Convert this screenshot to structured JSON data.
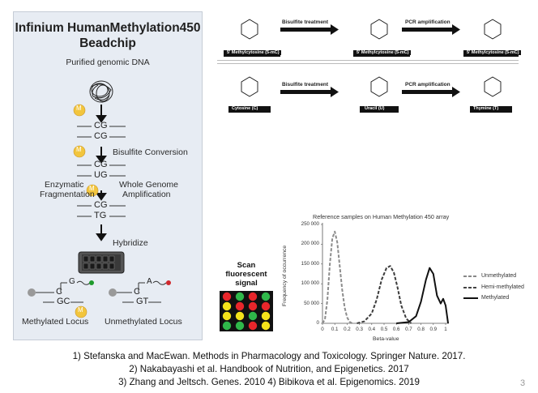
{
  "beadchip": {
    "title_line1": "Infinium HumanMethylation450",
    "title_line2": "Beadchip",
    "step_purified": "Purified genomic DNA",
    "step_bisulfite": "Bisulfite Conversion",
    "step_enzymatic_1": "Enzymatic",
    "step_enzymatic_2": "Fragmentation",
    "step_wga_1": "Whole Genome",
    "step_wga_2": "Amplification",
    "step_hybridize": "Hybridize",
    "methyl_mark": "M",
    "seq_cg": "CG",
    "seq_ug": "UG",
    "seq_tg": "TG",
    "probe_c": "C",
    "probe_g": "G",
    "probe_a": "A",
    "seq_gc": "GC",
    "seq_gt": "GT",
    "label_methylated_locus": "Methylated Locus",
    "label_unmethylated_locus": "Unmethylated Locus",
    "colors": {
      "methyl": "#f2c53d",
      "green_dye": "#1e9a2c",
      "red_dye": "#d0282c"
    }
  },
  "chemistry": {
    "row1": {
      "arrow1": "Bisulfite treatment",
      "arrow2": "PCR amplification",
      "mol1": "5' Methylcytosine (5-mC)",
      "mol2": "5' Methylcytosine (5-mC)",
      "mol3": "5' Methylcytosine (5-mC)"
    },
    "row2": {
      "arrow1": "Bisulfite treatment",
      "arrow2": "PCR amplification",
      "mol1": "Cytosine (C)",
      "mol2": "Uracil (U)",
      "mol3": "Thymine (T)"
    }
  },
  "scan": {
    "line1": "Scan",
    "line2": "fluorescent",
    "line3": "signal",
    "grid": [
      [
        "red",
        "green",
        "red",
        "green"
      ],
      [
        "yellow",
        "red",
        "red",
        "red"
      ],
      [
        "yellow",
        "yellow",
        "green",
        "yellow"
      ],
      [
        "green",
        "green",
        "red",
        "yellow"
      ]
    ],
    "colors": {
      "red": "#e8262b",
      "green": "#2fb84a",
      "yellow": "#f4e21a"
    }
  },
  "chart_data": {
    "type": "line",
    "title": "Reference samples on Human Methylation 450 array",
    "xlabel": "Beta-value",
    "ylabel": "Frequency of occurrence",
    "xlim": [
      0,
      1
    ],
    "ylim": [
      0,
      250000
    ],
    "x_ticks": [
      "0",
      "0.1",
      "0.2",
      "0.3",
      "0.4",
      "0.5",
      "0.6",
      "0.7",
      "0.8",
      "0.9",
      "1"
    ],
    "y_ticks": [
      "0",
      "50 000",
      "100 000",
      "150 000",
      "200 000",
      "250 000"
    ],
    "legend_position": "right",
    "series": [
      {
        "name": "Unmethylated",
        "style": "dashed-light",
        "x": [
          0.0,
          0.02,
          0.04,
          0.06,
          0.08,
          0.1,
          0.12,
          0.14,
          0.16,
          0.18,
          0.2,
          0.22,
          0.24
        ],
        "y": [
          0,
          10000,
          60000,
          150000,
          215000,
          232000,
          205000,
          145000,
          85000,
          40000,
          15000,
          4000,
          0
        ]
      },
      {
        "name": "Hemi-methylated",
        "style": "dashed-dark",
        "x": [
          0.28,
          0.34,
          0.4,
          0.44,
          0.48,
          0.52,
          0.55,
          0.58,
          0.61,
          0.64,
          0.68,
          0.72
        ],
        "y": [
          0,
          5000,
          25000,
          60000,
          110000,
          140000,
          145000,
          128000,
          90000,
          45000,
          12000,
          0
        ]
      },
      {
        "name": "Methylated",
        "style": "solid",
        "x": [
          0.6,
          0.7,
          0.76,
          0.8,
          0.84,
          0.87,
          0.9,
          0.93,
          0.96,
          0.98,
          1.0,
          1.02
        ],
        "y": [
          0,
          3000,
          18000,
          55000,
          110000,
          140000,
          125000,
          70000,
          50000,
          62000,
          45000,
          0
        ]
      }
    ]
  },
  "references": {
    "line1": "1) Stefanska and MacEwan. Methods in Pharmacology and Toxicology. Springer Nature. 2017.",
    "line2": "2) Nakabayashi et al. Handbook of Nutrition, and Epigenetics. 2017",
    "line3": "3) Zhang and Jeltsch. Genes. 2010 4) Bibikova et al. Epigenomics. 2019"
  },
  "page_number": "3"
}
